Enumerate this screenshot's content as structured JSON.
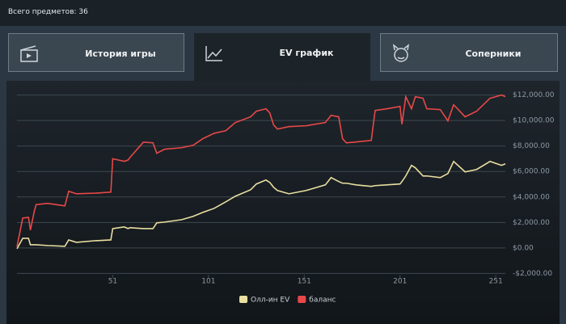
{
  "header": {
    "count_label": "Всего предметов: 36"
  },
  "tabs": [
    {
      "label": "История игры"
    },
    {
      "label": "EV график"
    },
    {
      "label": "Соперники"
    }
  ],
  "chart_data": {
    "type": "line",
    "x": [
      1,
      4,
      7,
      8,
      10,
      11,
      17,
      26,
      28,
      32,
      42,
      50,
      51,
      57,
      59,
      60,
      67,
      72,
      74,
      78,
      87,
      93,
      98,
      104,
      110,
      115,
      123,
      126,
      131,
      133,
      135,
      137,
      143,
      152,
      162,
      165,
      169,
      171,
      173,
      178,
      186,
      188,
      194,
      201,
      202,
      204,
      207,
      209,
      213,
      215,
      222,
      226,
      229,
      235,
      241,
      248,
      254,
      256
    ],
    "xlim": [
      1,
      256
    ],
    "xticks": [
      51,
      101,
      151,
      201,
      251
    ],
    "ylim": [
      -2100,
      12800
    ],
    "yticks": [
      {
        "value": -2000,
        "label": "-$2,000.00"
      },
      {
        "value": 0,
        "label": "$0.00"
      },
      {
        "value": 2000,
        "label": "$2,000.00"
      },
      {
        "value": 4000,
        "label": "$4,000.00"
      },
      {
        "value": 6000,
        "label": "$6,000.00"
      },
      {
        "value": 8000,
        "label": "$8,000.00"
      },
      {
        "value": 10000,
        "label": "$10,000.00"
      },
      {
        "value": 12000,
        "label": "$12,000.00"
      }
    ],
    "grid": true,
    "series": [
      {
        "name": "Олл-ин EV",
        "color": "#e9dea0",
        "values": [
          -60,
          760,
          760,
          250,
          250,
          250,
          190,
          130,
          630,
          440,
          570,
          630,
          1520,
          1650,
          1520,
          1590,
          1520,
          1520,
          1970,
          2030,
          2220,
          2480,
          2790,
          3110,
          3620,
          4060,
          4570,
          5020,
          5330,
          5140,
          4760,
          4510,
          4250,
          4510,
          4950,
          5520,
          5210,
          5080,
          5080,
          4950,
          4830,
          4890,
          4950,
          5020,
          5210,
          5650,
          6480,
          6290,
          5650,
          5650,
          5520,
          5840,
          6790,
          5970,
          6160,
          6790,
          6480,
          6600
        ]
      },
      {
        "name": "баланс",
        "color": "#e84848",
        "values": [
          100,
          2350,
          2400,
          1400,
          2850,
          3400,
          3500,
          3300,
          4450,
          4250,
          4300,
          4380,
          7000,
          6800,
          6900,
          7100,
          8300,
          8250,
          7430,
          7750,
          7870,
          8060,
          8570,
          9000,
          9200,
          9840,
          10290,
          10730,
          10920,
          10600,
          9650,
          9330,
          9520,
          9590,
          9840,
          10410,
          10290,
          8570,
          8250,
          8320,
          8440,
          10790,
          10920,
          11110,
          9710,
          11870,
          10920,
          11870,
          11750,
          10920,
          10860,
          9970,
          11240,
          10290,
          10730,
          11750,
          12000,
          11870
        ]
      }
    ]
  }
}
